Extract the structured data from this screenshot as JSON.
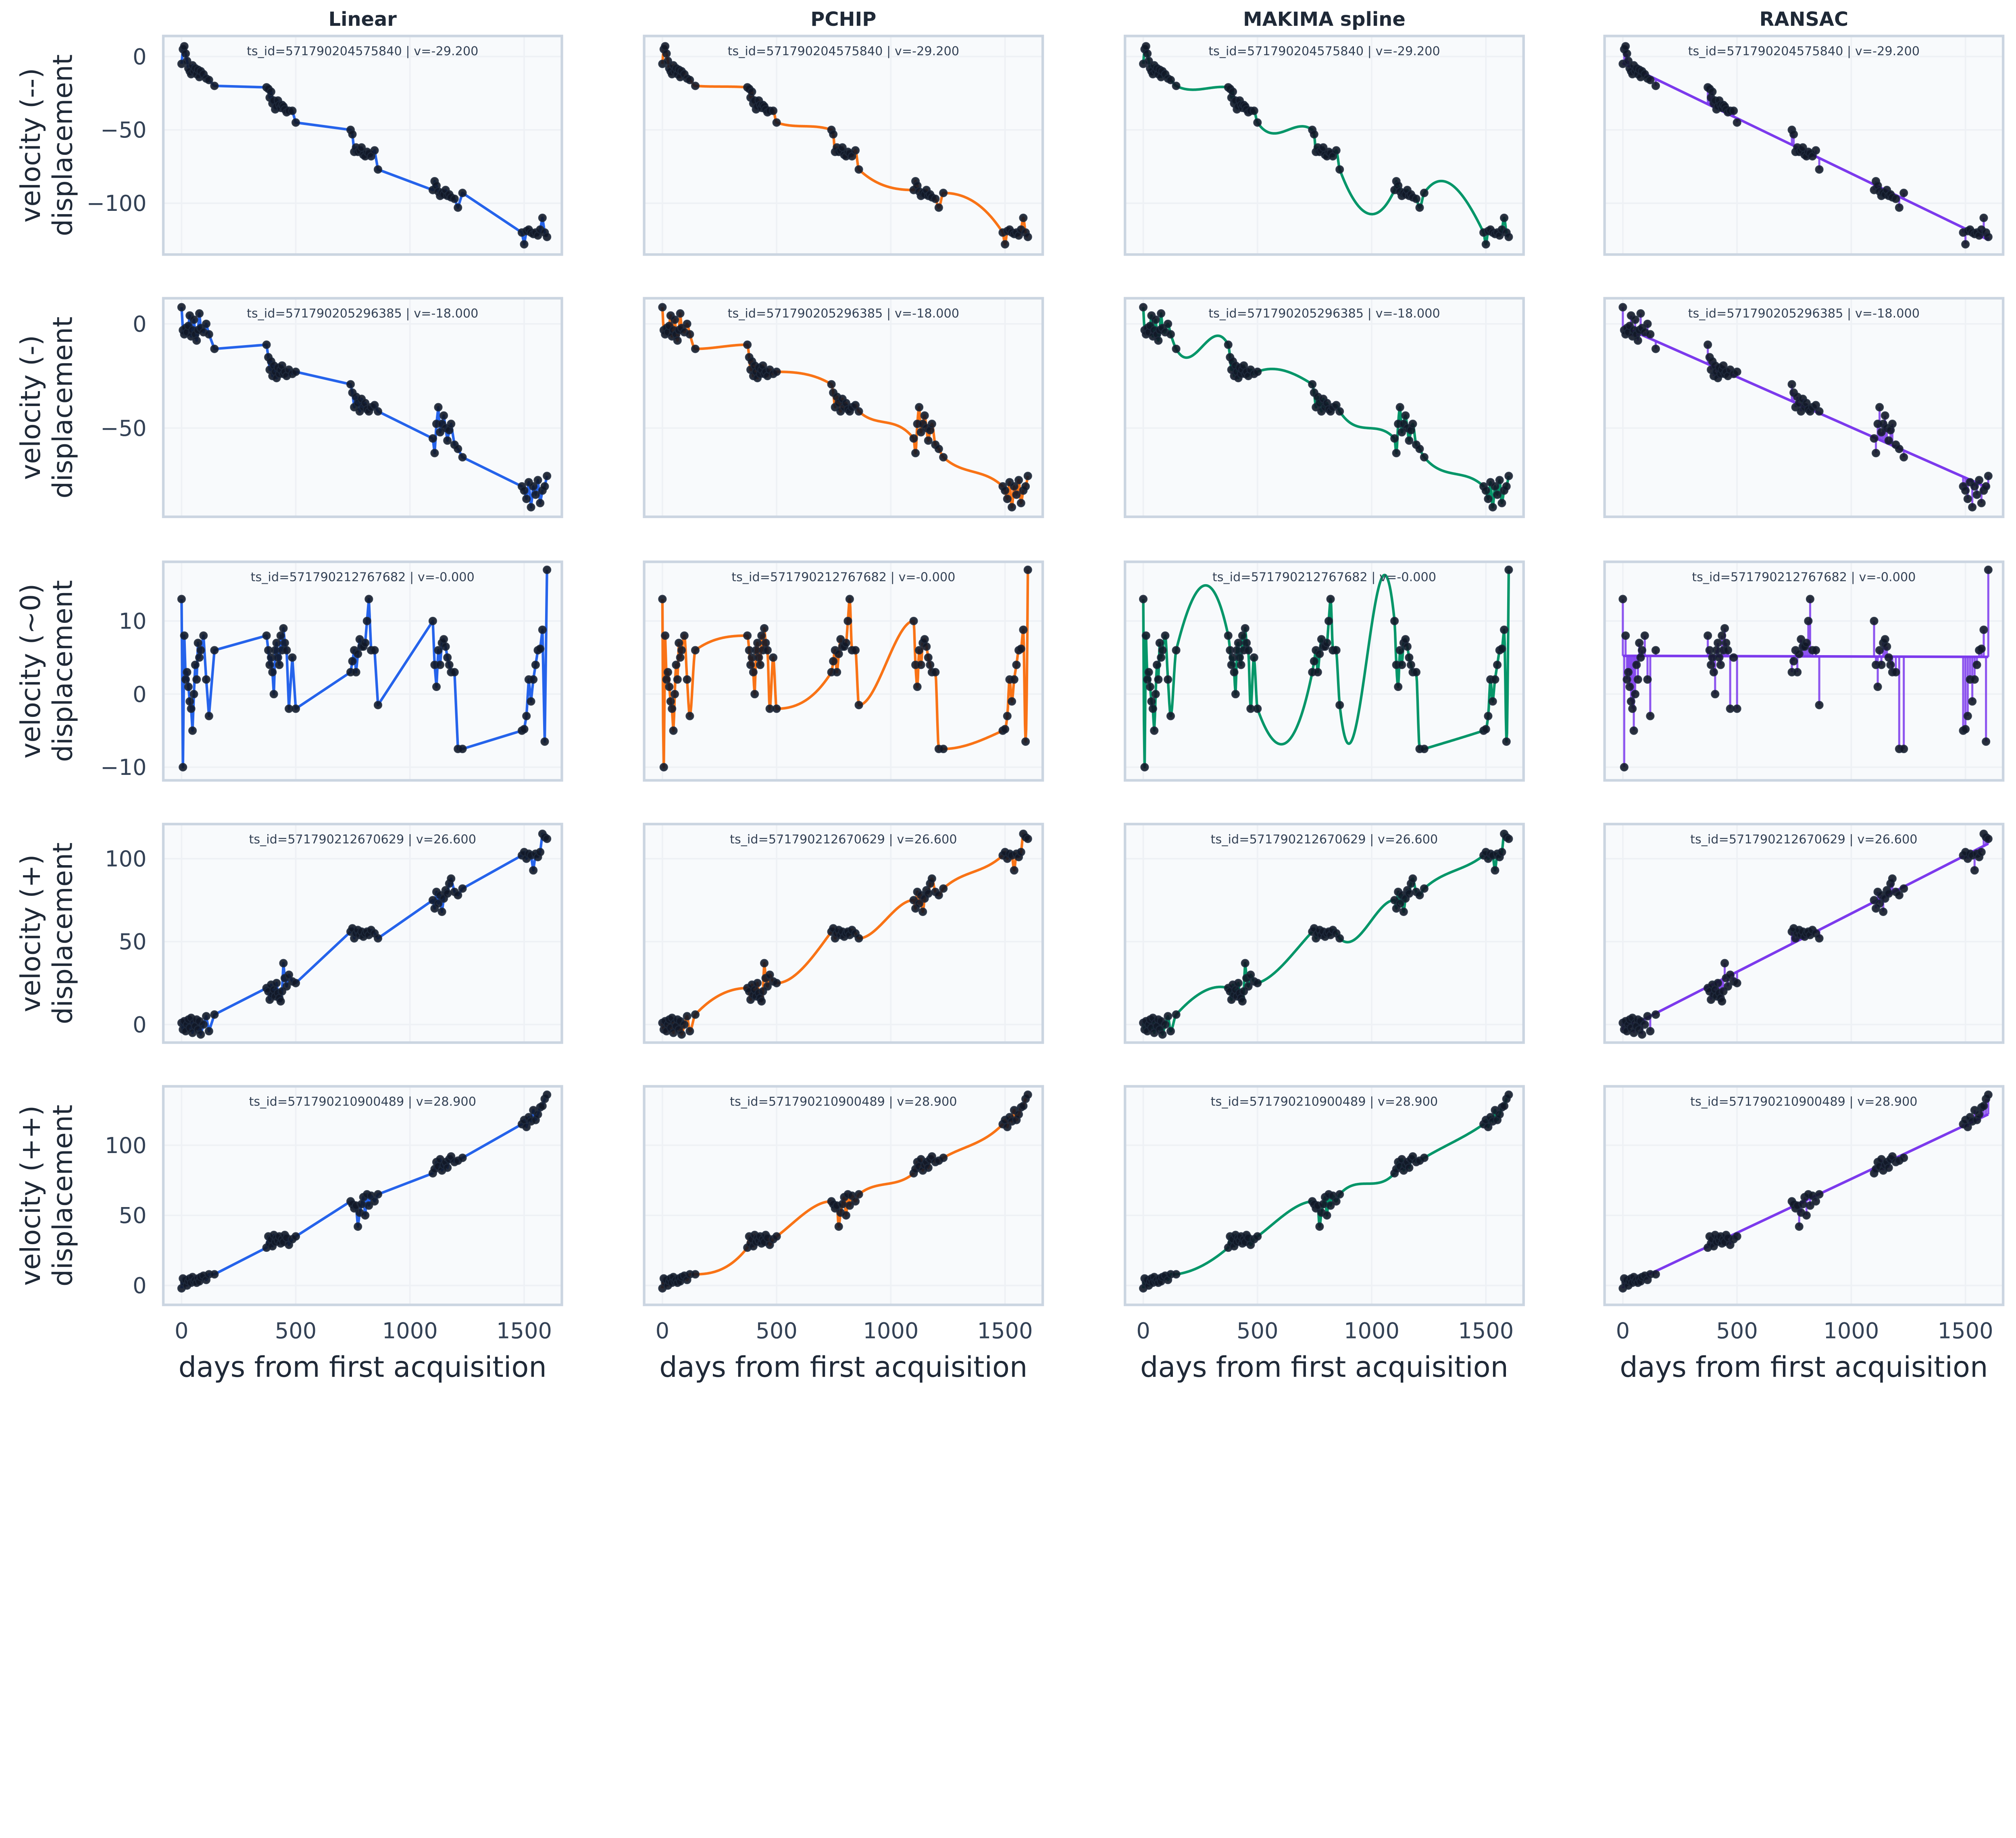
{
  "chart_data": {
    "type": "line",
    "layout": "grid 5 rows x 4 columns",
    "grid": true,
    "legend": "none",
    "methods": [
      {
        "name": "Linear",
        "color": "#2563eb",
        "kind": "linear"
      },
      {
        "name": "PCHIP",
        "color": "#f97316",
        "kind": "pchip"
      },
      {
        "name": "MAKIMA spline",
        "color": "#059669",
        "kind": "makima"
      },
      {
        "name": "RANSAC",
        "color": "#7c3aed",
        "kind": "ransac"
      }
    ],
    "point_color": "#111827",
    "xlabel": "days from first acquisition",
    "xlim": [
      -80,
      1665
    ],
    "xticks": [
      0,
      500,
      1000,
      1500
    ],
    "x": [
      0,
      6,
      12,
      18,
      24,
      30,
      36,
      42,
      48,
      54,
      60,
      66,
      72,
      78,
      84,
      96,
      108,
      120,
      144,
      372,
      380,
      386,
      392,
      398,
      404,
      410,
      416,
      422,
      428,
      434,
      440,
      446,
      452,
      460,
      470,
      485,
      500,
      740,
      748,
      756,
      764,
      772,
      780,
      788,
      796,
      804,
      812,
      820,
      830,
      845,
      860,
      1100,
      1108,
      1116,
      1124,
      1132,
      1140,
      1148,
      1156,
      1164,
      1172,
      1180,
      1195,
      1210,
      1230,
      1490,
      1500,
      1510,
      1520,
      1530,
      1540,
      1550,
      1560,
      1570,
      1580,
      1590,
      1600
    ],
    "rows": [
      {
        "ylabel_top": "velocity (--)",
        "ylabel_bottom": "displacement",
        "annotation": "ts_id=571790204575840 | v=-29.200",
        "ylim": [
          -135,
          14
        ],
        "yticks": [
          0,
          -50,
          -100
        ],
        "y": [
          -5,
          5,
          7,
          2,
          -3,
          -8,
          -10,
          -12,
          -6,
          -10,
          -8,
          -12,
          -9,
          -14,
          -10,
          -12,
          -15,
          -16,
          -20,
          -21,
          -22,
          -28,
          -24,
          -32,
          -30,
          -36,
          -34,
          -30,
          -33,
          -35,
          -33,
          -34,
          -36,
          -38,
          -37,
          -37,
          -45,
          -50,
          -53,
          -65,
          -62,
          -65,
          -64,
          -62,
          -67,
          -68,
          -65,
          -66,
          -68,
          -64,
          -77,
          -91,
          -85,
          -88,
          -92,
          -95,
          -93,
          -94,
          -91,
          -95,
          -94,
          -96,
          -97,
          -103,
          -93,
          -120,
          -128,
          -119,
          -118,
          -120,
          -121,
          -120,
          -122,
          -118,
          -110,
          -120,
          -123
        ]
      },
      {
        "ylabel_top": "velocity (-)",
        "ylabel_bottom": "displacement",
        "annotation": "ts_id=571790205296385 | v=-18.000",
        "ylim": [
          -92.6,
          12.3
        ],
        "yticks": [
          0,
          -50
        ],
        "y": [
          8,
          -3,
          -5,
          -2,
          -4,
          -1,
          4,
          -6,
          -3,
          2,
          -5,
          -8,
          -3,
          5,
          -2,
          -4,
          0,
          -5,
          -12,
          -10,
          -16,
          -22,
          -18,
          -25,
          -20,
          -23,
          -26,
          -21,
          -24,
          -22,
          -20,
          -24,
          -23,
          -25,
          -22,
          -24,
          -23,
          -29,
          -33,
          -40,
          -35,
          -38,
          -42,
          -36,
          -40,
          -38,
          -41,
          -42,
          -40,
          -39,
          -42,
          -55,
          -62,
          -48,
          -40,
          -52,
          -48,
          -44,
          -50,
          -56,
          -51,
          -48,
          -58,
          -60,
          -64,
          -78,
          -80,
          -84,
          -76,
          -88,
          -78,
          -82,
          -75,
          -86,
          -80,
          -78,
          -73
        ]
      },
      {
        "ylabel_top": "velocity (~0)",
        "ylabel_bottom": "displacement",
        "annotation": "ts_id=571790212767682 | v=-0.000",
        "ylim": [
          -11.8,
          18.1
        ],
        "yticks": [
          -10,
          0,
          10
        ],
        "y": [
          13,
          -10,
          8,
          2,
          3,
          1,
          -1,
          -2,
          -5,
          0,
          4,
          2,
          7,
          5,
          6,
          8,
          2,
          -3,
          6,
          8,
          6,
          4,
          5,
          3,
          0,
          6,
          7,
          5,
          4,
          8,
          6,
          9,
          7,
          6,
          -2,
          5,
          -2,
          3,
          4.5,
          6,
          3,
          5.5,
          7.5,
          6.5,
          6.5,
          7,
          10,
          13,
          6,
          6,
          -1.5,
          10,
          4,
          1,
          6,
          4,
          7,
          7.5,
          6.5,
          5,
          4,
          3,
          3,
          -7.5,
          -7.5,
          -5,
          -4.8,
          -3,
          2,
          -1,
          2,
          4,
          6,
          6.2,
          8.8,
          -6.5,
          17
        ]
      },
      {
        "ylabel_top": "velocity (+)",
        "ylabel_bottom": "displacement",
        "annotation": "ts_id=571790212670629 | v=26.600",
        "ylim": [
          -10.9,
          120.9
        ],
        "yticks": [
          0,
          50,
          100
        ],
        "y": [
          1,
          -3,
          2,
          -4,
          0,
          3,
          -2,
          4,
          -5,
          1,
          -1,
          3,
          -3,
          2,
          -6,
          0,
          5,
          -4,
          6,
          22,
          20,
          15,
          24,
          18,
          21,
          17,
          25,
          19,
          16,
          14,
          20,
          37,
          28,
          23,
          30,
          26,
          25,
          56,
          58,
          52,
          55,
          57,
          54,
          56,
          53,
          55,
          56,
          54,
          57,
          55,
          52,
          75,
          70,
          80,
          73,
          78,
          68,
          76,
          81,
          79,
          85,
          88,
          80,
          78,
          82,
          102,
          104,
          100,
          103,
          102,
          93,
          103,
          101,
          104,
          115,
          113,
          112
        ]
      },
      {
        "ylabel_top": "velocity (++)",
        "ylabel_bottom": "displacement",
        "annotation": "ts_id=571790210900489 | v=28.900",
        "ylim": [
          -13.8,
          142
        ],
        "yticks": [
          0,
          50,
          100
        ],
        "y": [
          -2,
          5,
          2,
          4,
          0,
          3,
          5,
          2,
          6,
          3,
          4,
          2,
          5,
          3,
          6,
          7,
          4,
          8,
          8,
          27,
          35,
          30,
          33,
          28,
          36,
          31,
          34,
          32,
          35,
          30,
          33,
          31,
          36,
          34,
          29,
          33,
          35,
          60,
          58,
          55,
          57,
          42,
          52,
          58,
          63,
          50,
          65,
          57,
          64,
          60,
          65,
          80,
          83,
          88,
          85,
          90,
          82,
          86,
          88,
          84,
          90,
          92,
          88,
          89,
          91,
          115,
          118,
          113,
          120,
          117,
          125,
          118,
          122,
          127,
          128,
          133,
          136
        ]
      }
    ]
  }
}
